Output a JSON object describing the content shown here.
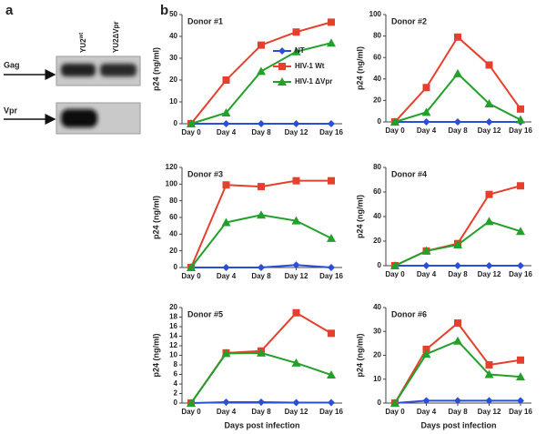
{
  "panel_labels": [
    "a",
    "b"
  ],
  "blot": {
    "lanes": [
      {
        "base": "YU2",
        "sup": "wt"
      },
      {
        "base": "YU2ΔVpr",
        "sup": ""
      }
    ],
    "rows": [
      "Gag",
      "Vpr"
    ]
  },
  "chart_data": [
    {
      "type": "line",
      "title": "Donor #1",
      "ylabel": "p24 (ng/ml)",
      "categories": [
        "Day 0",
        "Day 4",
        "Day 8",
        "Day 12",
        "Day 16"
      ],
      "ylim": [
        0,
        50
      ],
      "yticks": [
        0,
        10,
        20,
        30,
        40,
        50
      ],
      "legend": "upper-center",
      "series": [
        {
          "name": "NT",
          "color": "#2a4fd6",
          "marker": "diamond",
          "values": [
            0,
            0,
            0,
            0,
            0
          ]
        },
        {
          "name": "HIV-1 Wt",
          "color": "#e5402d",
          "marker": "square",
          "values": [
            0,
            20,
            36,
            42,
            46.5
          ]
        },
        {
          "name": "HIV-1 ΔVpr",
          "color": "#22a02a",
          "marker": "triangle",
          "values": [
            0,
            5,
            24,
            33,
            37
          ]
        }
      ]
    },
    {
      "type": "line",
      "title": "Donor #2",
      "ylabel": "p24 (ng/ml)",
      "categories": [
        "Day 0",
        "Day 4",
        "Day 8",
        "Day 12",
        "Day 16"
      ],
      "ylim": [
        0,
        100
      ],
      "yticks": [
        0,
        20,
        40,
        60,
        80,
        100
      ],
      "series": [
        {
          "name": "NT",
          "color": "#2a4fd6",
          "marker": "diamond",
          "values": [
            0,
            0,
            0,
            0,
            0
          ]
        },
        {
          "name": "HIV-1 Wt",
          "color": "#e5402d",
          "marker": "square",
          "values": [
            0,
            32,
            79,
            53,
            12
          ]
        },
        {
          "name": "HIV-1 ΔVpr",
          "color": "#22a02a",
          "marker": "triangle",
          "values": [
            0,
            9,
            45,
            17,
            2
          ]
        }
      ]
    },
    {
      "type": "line",
      "title": "Donor #3",
      "ylabel": "p24 (ng/ml)",
      "categories": [
        "Day 0",
        "Day 4",
        "Day 8",
        "Day 12",
        "Day 16"
      ],
      "ylim": [
        0,
        120
      ],
      "yticks": [
        0,
        20,
        40,
        60,
        80,
        100,
        120
      ],
      "series": [
        {
          "name": "NT",
          "color": "#2a4fd6",
          "marker": "diamond",
          "values": [
            0,
            0,
            0,
            3,
            0
          ]
        },
        {
          "name": "HIV-1 Wt",
          "color": "#e5402d",
          "marker": "square",
          "values": [
            0,
            99,
            97,
            104,
            104
          ]
        },
        {
          "name": "HIV-1 ΔVpr",
          "color": "#22a02a",
          "marker": "triangle",
          "values": [
            0,
            54,
            63,
            56,
            35
          ]
        }
      ]
    },
    {
      "type": "line",
      "title": "Donor #4",
      "ylabel": "p24 (ng/ml)",
      "categories": [
        "Day 0",
        "Day 4",
        "Day 8",
        "Day 12",
        "Day 16"
      ],
      "ylim": [
        0,
        80
      ],
      "yticks": [
        0,
        20,
        40,
        60,
        80
      ],
      "series": [
        {
          "name": "NT",
          "color": "#2a4fd6",
          "marker": "diamond",
          "values": [
            0,
            0,
            0,
            0,
            0
          ]
        },
        {
          "name": "HIV-1 Wt",
          "color": "#e5402d",
          "marker": "square",
          "values": [
            0,
            12,
            18,
            58,
            65
          ]
        },
        {
          "name": "HIV-1 ΔVpr",
          "color": "#22a02a",
          "marker": "triangle",
          "values": [
            0,
            12,
            17,
            36,
            28
          ]
        }
      ]
    },
    {
      "type": "line",
      "title": "Donor #5",
      "ylabel": "p24 (ng/ml)",
      "xlabel": "Days post infection",
      "categories": [
        "Day 0",
        "Day 4",
        "Day 8",
        "Day 12",
        "Day 16"
      ],
      "ylim": [
        0,
        20
      ],
      "yticks": [
        0,
        2,
        4,
        6,
        8,
        10,
        12,
        14,
        16,
        18,
        20
      ],
      "series": [
        {
          "name": "NT",
          "color": "#2a4fd6",
          "marker": "diamond",
          "values": [
            0,
            0.2,
            0.2,
            0.1,
            0.1
          ]
        },
        {
          "name": "HIV-1 Wt",
          "color": "#e5402d",
          "marker": "square",
          "values": [
            0,
            10.5,
            10.9,
            18.9,
            14.6
          ]
        },
        {
          "name": "HIV-1 ΔVpr",
          "color": "#22a02a",
          "marker": "triangle",
          "values": [
            0,
            10.4,
            10.5,
            8.4,
            5.9
          ]
        }
      ]
    },
    {
      "type": "line",
      "title": "Donor #6",
      "ylabel": "p24 (ng/ml)",
      "xlabel": "Days post infection",
      "categories": [
        "Day 0",
        "Day 4",
        "Day 8",
        "Day 12",
        "Day 16"
      ],
      "ylim": [
        0,
        40
      ],
      "yticks": [
        0,
        10,
        20,
        30,
        40
      ],
      "series": [
        {
          "name": "NT",
          "color": "#2a4fd6",
          "marker": "diamond",
          "values": [
            0,
            1,
            1,
            1,
            1
          ]
        },
        {
          "name": "HIV-1 Wt",
          "color": "#e5402d",
          "marker": "square",
          "values": [
            0,
            22.5,
            33.5,
            16,
            18
          ]
        },
        {
          "name": "HIV-1 ΔVpr",
          "color": "#22a02a",
          "marker": "triangle",
          "values": [
            0,
            20.5,
            26,
            12,
            11
          ]
        }
      ]
    }
  ]
}
